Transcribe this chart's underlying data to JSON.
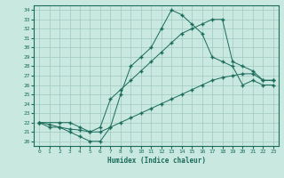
{
  "xlabel": "Humidex (Indice chaleur)",
  "xlim": [
    -0.5,
    23.5
  ],
  "ylim": [
    19.5,
    34.5
  ],
  "xticks": [
    0,
    1,
    2,
    3,
    4,
    5,
    6,
    7,
    8,
    9,
    10,
    11,
    12,
    13,
    14,
    15,
    16,
    17,
    18,
    19,
    20,
    21,
    22,
    23
  ],
  "yticks": [
    20,
    21,
    22,
    23,
    24,
    25,
    26,
    27,
    28,
    29,
    30,
    31,
    32,
    33,
    34
  ],
  "bg_color": "#c8e8e0",
  "grid_color": "#a0c8c0",
  "line_color": "#1a6b5a",
  "line1_x": [
    0,
    1,
    2,
    3,
    4,
    5,
    6,
    7,
    8,
    9,
    10,
    11,
    12,
    13,
    14,
    15,
    16,
    17,
    18,
    19,
    20,
    21,
    22,
    23
  ],
  "line1_y": [
    22,
    21.5,
    21.5,
    21,
    20.5,
    20,
    20,
    21.5,
    25,
    28,
    29,
    30,
    32,
    34,
    33.5,
    32.5,
    31.5,
    29,
    28.5,
    28,
    26,
    26.5,
    26,
    26
  ],
  "line2_x": [
    0,
    2,
    3,
    4,
    5,
    6,
    7,
    8,
    9,
    10,
    11,
    12,
    13,
    14,
    15,
    16,
    17,
    18,
    19,
    20,
    21,
    22,
    23
  ],
  "line2_y": [
    22,
    22,
    22,
    21.5,
    21,
    21.5,
    24.5,
    25.5,
    26.5,
    27.5,
    28.5,
    29.5,
    30.5,
    31.5,
    32,
    32.5,
    33,
    33,
    28.5,
    28,
    27.5,
    26.5,
    26.5
  ],
  "line3_x": [
    0,
    1,
    2,
    3,
    4,
    5,
    6,
    7,
    8,
    9,
    10,
    11,
    12,
    13,
    14,
    15,
    16,
    17,
    18,
    19,
    20,
    21,
    22,
    23
  ],
  "line3_y": [
    22,
    21.8,
    21.5,
    21.3,
    21.2,
    21,
    21,
    21.5,
    22,
    22.5,
    23,
    23.5,
    24,
    24.5,
    25,
    25.5,
    26,
    26.5,
    26.8,
    27,
    27.2,
    27.2,
    26.5,
    26.5
  ]
}
